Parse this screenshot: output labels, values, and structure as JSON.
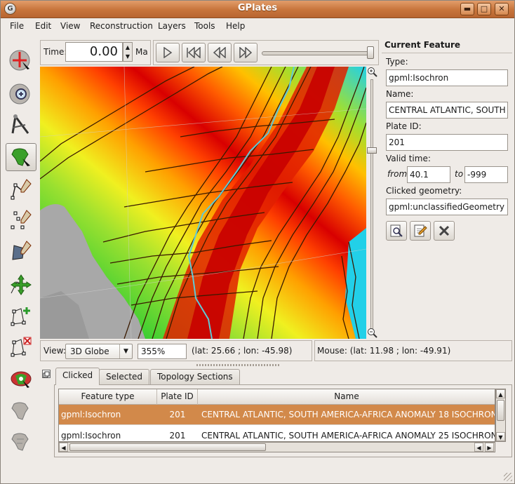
{
  "window": {
    "title": "GPlates",
    "app_icon": "G",
    "min_label": "▬",
    "max_label": "□",
    "close_label": "✕"
  },
  "menu": [
    "File",
    "Edit",
    "View",
    "Reconstruction",
    "Layers",
    "Tools",
    "Help"
  ],
  "time": {
    "label": "Time:",
    "value": "0.00",
    "unit": "Ma",
    "slider_position": 1.0
  },
  "animation_buttons": [
    "play-icon",
    "reset-to-start-icon",
    "step-back-icon",
    "step-forward-icon"
  ],
  "tools": [
    "drag-globe-icon",
    "zoom-globe-icon",
    "measure-distance-icon",
    "choose-feature-icon",
    "digitise-polyline-icon",
    "digitise-multipoint-icon",
    "digitise-polygon-icon",
    "move-vertex-icon",
    "insert-vertex-icon",
    "delete-vertex-icon",
    "manipulate-pole-icon",
    "build-topology-icon",
    "edit-topology-icon"
  ],
  "zoom": {
    "level_fraction": 0.27
  },
  "view_bar": {
    "label": "View:",
    "projection": "3D Globe",
    "zoom_value": "355%",
    "camera_coords": "(lat: 25.66 ; lon: -45.98)",
    "mouse_coords": "Mouse: (lat: 11.98 ; lon: -49.91)"
  },
  "current_feature": {
    "title": "Current Feature",
    "type_label": "Type:",
    "type_value": "gpml:Isochron",
    "name_label": "Name:",
    "name_value": "CENTRAL ATLANTIC, SOUTH",
    "plate_id_label": "Plate ID:",
    "plate_id_value": "201",
    "valid_time_label": "Valid time:",
    "from_label": "from",
    "from_value": "40.1",
    "to_label": "to",
    "to_value": "-999",
    "clicked_geometry_label": "Clicked geometry:",
    "clicked_geometry_value": "gpml:unclassifiedGeometry"
  },
  "tabs": [
    "Clicked",
    "Selected",
    "Topology Sections"
  ],
  "table": {
    "columns": [
      "Feature type",
      "Plate ID",
      "Name"
    ],
    "rows": [
      {
        "type": "gpml:Isochron",
        "plate_id": "201",
        "name": "CENTRAL ATLANTIC, SOUTH AMERICA-AFRICA ANOMALY 18 ISOCHRON"
      },
      {
        "type": "gpml:Isochron",
        "plate_id": "201",
        "name": "CENTRAL ATLANTIC, SOUTH AMERICA-AFRICA ANOMALY 25 ISOCHRON"
      }
    ]
  },
  "colors": {
    "title_bar": "#c8753c",
    "selected_row": "#d2894a",
    "plate_boundary": "#5fc9d6",
    "isochron": "#3a1a00"
  }
}
